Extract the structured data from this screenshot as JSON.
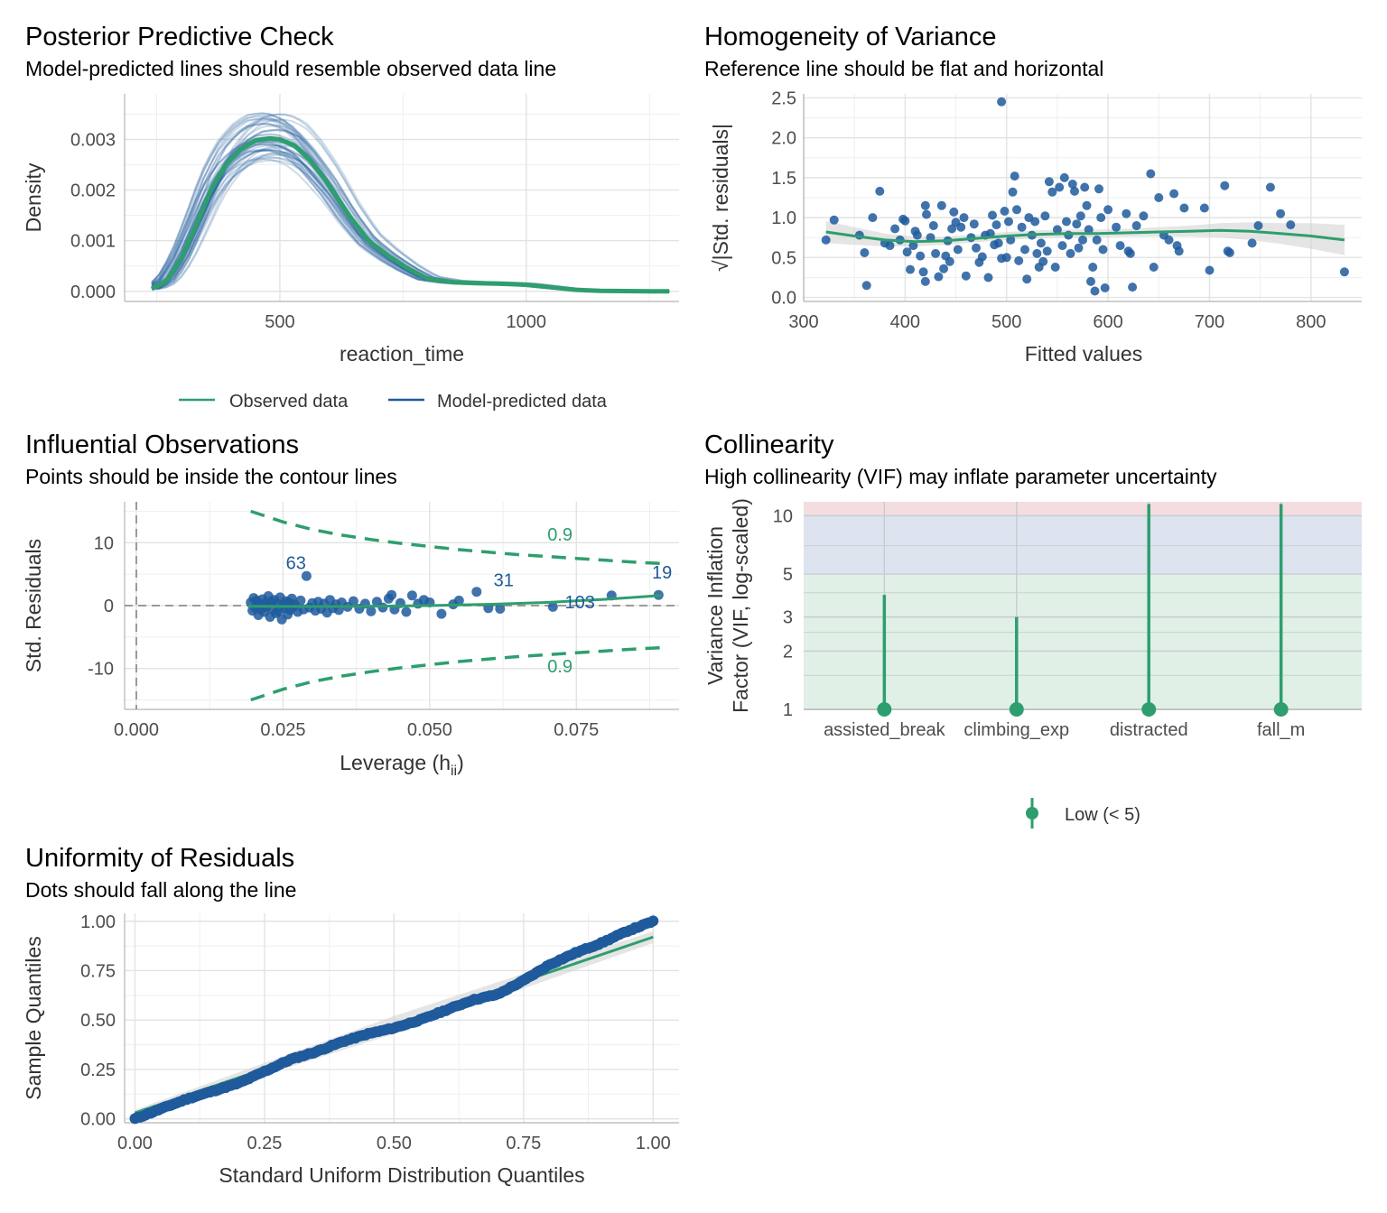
{
  "colors": {
    "observed": "#2e9e6e",
    "predicted": "#1f5a9c",
    "grid": "#e3e3e3",
    "axis": "#b3b3b3",
    "band": "#cfcfcf",
    "zone_low": "#e0f0e6",
    "zone_mod": "#dde3ef",
    "zone_high": "#f4dde0",
    "ref": "#9a9a9a"
  },
  "chart_data": [
    {
      "id": "ppc",
      "type": "line",
      "title": "Posterior Predictive Check",
      "subtitle": "Model-predicted lines should resemble observed data line",
      "xlabel": "reaction_time",
      "ylabel": "Density",
      "xlim": [
        185,
        1310
      ],
      "ylim": [
        -0.0002,
        0.0039
      ],
      "xticks": [
        500,
        1000
      ],
      "xtick_labels": [
        "500",
        "1000"
      ],
      "yticks": [
        0,
        0.001,
        0.002,
        0.003
      ],
      "ytick_labels": [
        "0.000",
        "0.001",
        "0.002",
        "0.003"
      ],
      "observed": {
        "x": [
          240,
          270,
          300,
          330,
          360,
          390,
          420,
          450,
          480,
          500,
          530,
          560,
          600,
          640,
          680,
          720,
          760,
          800,
          850,
          900,
          950,
          1000,
          1050,
          1100,
          1150,
          1200,
          1250,
          1290
        ],
        "y": [
          5e-05,
          0.0002,
          0.00065,
          0.0013,
          0.002,
          0.0025,
          0.0028,
          0.00298,
          0.00302,
          0.003,
          0.00288,
          0.0026,
          0.0021,
          0.0015,
          0.001,
          0.0007,
          0.00045,
          0.00025,
          0.00018,
          0.00016,
          0.00015,
          0.00013,
          8e-05,
          3e-05,
          1e-05,
          5e-06,
          2e-06,
          1e-06
        ]
      },
      "n_predicted_draws": 50,
      "legend": [
        {
          "label": "Observed data",
          "color_key": "observed"
        },
        {
          "label": "Model-predicted data",
          "color_key": "predicted"
        }
      ]
    },
    {
      "id": "hov",
      "type": "scatter",
      "title": "Homogeneity of Variance",
      "subtitle": "Reference line should be flat and horizontal",
      "xlabel": "Fitted values",
      "ylabel": "√|Std. residuals|",
      "xlim": [
        300,
        850
      ],
      "ylim": [
        -0.05,
        2.55
      ],
      "xticks": [
        300,
        400,
        500,
        600,
        700,
        800
      ],
      "xtick_labels": [
        "300",
        "400",
        "500",
        "600",
        "700",
        "800"
      ],
      "yticks": [
        0,
        0.5,
        1,
        1.5,
        2,
        2.5
      ],
      "ytick_labels": [
        "0.0",
        "0.5",
        "1.0",
        "1.5",
        "2.0",
        "2.5"
      ],
      "points": [
        [
          322,
          0.72
        ],
        [
          330,
          0.97
        ],
        [
          355,
          0.78
        ],
        [
          360,
          0.56
        ],
        [
          362,
          0.15
        ],
        [
          368,
          1.0
        ],
        [
          375,
          1.33
        ],
        [
          380,
          0.68
        ],
        [
          385,
          0.65
        ],
        [
          390,
          0.86
        ],
        [
          395,
          0.72
        ],
        [
          398,
          0.98
        ],
        [
          400,
          0.96
        ],
        [
          402,
          0.57
        ],
        [
          405,
          0.35
        ],
        [
          408,
          0.65
        ],
        [
          410,
          0.83
        ],
        [
          412,
          0.78
        ],
        [
          415,
          0.52
        ],
        [
          418,
          0.32
        ],
        [
          420,
          1.15
        ],
        [
          420,
          0.2
        ],
        [
          421,
          1.04
        ],
        [
          425,
          0.75
        ],
        [
          428,
          0.9
        ],
        [
          430,
          0.55
        ],
        [
          433,
          0.26
        ],
        [
          436,
          1.15
        ],
        [
          438,
          0.36
        ],
        [
          440,
          0.52
        ],
        [
          442,
          0.71
        ],
        [
          444,
          0.45
        ],
        [
          446,
          0.86
        ],
        [
          448,
          1.07
        ],
        [
          450,
          0.94
        ],
        [
          452,
          0.6
        ],
        [
          455,
          0.88
        ],
        [
          458,
          1.0
        ],
        [
          460,
          0.27
        ],
        [
          465,
          0.75
        ],
        [
          468,
          0.92
        ],
        [
          470,
          0.62
        ],
        [
          473,
          0.44
        ],
        [
          476,
          0.51
        ],
        [
          479,
          0.78
        ],
        [
          482,
          0.25
        ],
        [
          484,
          0.8
        ],
        [
          486,
          1.03
        ],
        [
          488,
          0.66
        ],
        [
          490,
          0.91
        ],
        [
          492,
          0.68
        ],
        [
          495,
          0.49
        ],
        [
          498,
          1.08
        ],
        [
          500,
          0.5
        ],
        [
          502,
          0.95
        ],
        [
          504,
          0.72
        ],
        [
          506,
          1.32
        ],
        [
          508,
          1.52
        ],
        [
          510,
          1.1
        ],
        [
          512,
          0.46
        ],
        [
          515,
          0.88
        ],
        [
          518,
          0.6
        ],
        [
          520,
          0.23
        ],
        [
          522,
          1.0
        ],
        [
          525,
          0.78
        ],
        [
          528,
          0.95
        ],
        [
          530,
          0.55
        ],
        [
          532,
          0.38
        ],
        [
          534,
          0.68
        ],
        [
          536,
          0.45
        ],
        [
          538,
          1.02
        ],
        [
          540,
          0.58
        ],
        [
          542,
          1.45
        ],
        [
          545,
          1.32
        ],
        [
          548,
          0.38
        ],
        [
          550,
          0.85
        ],
        [
          552,
          1.38
        ],
        [
          555,
          0.65
        ],
        [
          557,
          1.5
        ],
        [
          559,
          0.95
        ],
        [
          561,
          0.78
        ],
        [
          563,
          0.55
        ],
        [
          565,
          1.42
        ],
        [
          567,
          1.33
        ],
        [
          569,
          0.92
        ],
        [
          571,
          0.62
        ],
        [
          573,
          1.02
        ],
        [
          575,
          0.72
        ],
        [
          577,
          1.38
        ],
        [
          579,
          1.15
        ],
        [
          581,
          0.85
        ],
        [
          583,
          0.2
        ],
        [
          585,
          0.38
        ],
        [
          587,
          0.08
        ],
        [
          589,
          0.72
        ],
        [
          591,
          1.36
        ],
        [
          593,
          1.0
        ],
        [
          595,
          0.6
        ],
        [
          597,
          0.12
        ],
        [
          600,
          1.1
        ],
        [
          608,
          0.88
        ],
        [
          612,
          0.65
        ],
        [
          618,
          1.05
        ],
        [
          620,
          0.58
        ],
        [
          622,
          0.55
        ],
        [
          624,
          0.13
        ],
        [
          628,
          0.9
        ],
        [
          635,
          1.02
        ],
        [
          642,
          1.55
        ],
        [
          645,
          0.38
        ],
        [
          650,
          1.25
        ],
        [
          655,
          0.78
        ],
        [
          660,
          0.72
        ],
        [
          665,
          1.3
        ],
        [
          668,
          0.65
        ],
        [
          670,
          0.58
        ],
        [
          675,
          1.12
        ],
        [
          695,
          1.12
        ],
        [
          700,
          0.34
        ],
        [
          715,
          1.4
        ],
        [
          718,
          0.58
        ],
        [
          720,
          0.56
        ],
        [
          742,
          0.68
        ],
        [
          748,
          0.9
        ],
        [
          760,
          1.38
        ],
        [
          770,
          1.05
        ],
        [
          780,
          0.91
        ],
        [
          833,
          0.32
        ],
        [
          495,
          2.45
        ]
      ],
      "smooth_x": [
        322,
        350,
        380,
        410,
        440,
        470,
        500,
        530,
        560,
        590,
        620,
        650,
        680,
        710,
        740,
        770,
        800,
        833
      ],
      "smooth_y": [
        0.82,
        0.77,
        0.72,
        0.7,
        0.71,
        0.74,
        0.77,
        0.79,
        0.8,
        0.8,
        0.81,
        0.82,
        0.83,
        0.84,
        0.83,
        0.8,
        0.77,
        0.72
      ],
      "band_half": [
        0.14,
        0.11,
        0.08,
        0.06,
        0.05,
        0.05,
        0.05,
        0.05,
        0.05,
        0.05,
        0.05,
        0.06,
        0.07,
        0.09,
        0.11,
        0.13,
        0.16,
        0.19
      ]
    },
    {
      "id": "influential",
      "type": "scatter",
      "title": "Influential Observations",
      "subtitle": "Points should be inside the contour lines",
      "xlabel": "Leverage (h",
      "xlabel_sub": "ii",
      "xlabel_close": ")",
      "ylabel": "Std. Residuals",
      "xlim": [
        -0.002,
        0.0925
      ],
      "ylim": [
        -16.5,
        16.5
      ],
      "xticks": [
        0,
        0.025,
        0.05,
        0.075
      ],
      "xtick_labels": [
        "0.000",
        "0.025",
        "0.050",
        "0.075"
      ],
      "yticks": [
        -10,
        0,
        10
      ],
      "ytick_labels": [
        "-10",
        "0",
        "10"
      ],
      "contour_label": "0.9",
      "contour_x": [
        0.0195,
        0.025,
        0.03,
        0.035,
        0.04,
        0.045,
        0.05,
        0.055,
        0.06,
        0.065,
        0.07,
        0.075,
        0.08,
        0.085,
        0.0895
      ],
      "contour_y": [
        15.0,
        13.3,
        12.1,
        11.2,
        10.5,
        9.9,
        9.4,
        8.9,
        8.5,
        8.1,
        7.8,
        7.5,
        7.2,
        6.9,
        6.7
      ],
      "smooth_x": [
        0.019,
        0.03,
        0.04,
        0.05,
        0.06,
        0.07,
        0.08,
        0.0895
      ],
      "smooth_y": [
        -0.1,
        -0.15,
        -0.1,
        0.0,
        0.2,
        0.5,
        1.0,
        1.6
      ],
      "points": [
        [
          0.0195,
          0.5
        ],
        [
          0.0198,
          -0.8
        ],
        [
          0.02,
          1.2
        ],
        [
          0.0202,
          -0.3
        ],
        [
          0.0205,
          0.8
        ],
        [
          0.0208,
          -1.5
        ],
        [
          0.021,
          0.2
        ],
        [
          0.0212,
          -0.6
        ],
        [
          0.0215,
          1.0
        ],
        [
          0.0218,
          -1.0
        ],
        [
          0.022,
          0.4
        ],
        [
          0.0222,
          -0.2
        ],
        [
          0.0225,
          1.5
        ],
        [
          0.0228,
          -1.8
        ],
        [
          0.023,
          0.6
        ],
        [
          0.0232,
          -0.5
        ],
        [
          0.0235,
          0.9
        ],
        [
          0.0238,
          -1.2
        ],
        [
          0.024,
          0.3
        ],
        [
          0.0242,
          -0.9
        ],
        [
          0.0245,
          1.3
        ],
        [
          0.0248,
          -2.2
        ],
        [
          0.025,
          0.1
        ],
        [
          0.0252,
          -0.4
        ],
        [
          0.0255,
          0.7
        ],
        [
          0.0258,
          -1.4
        ],
        [
          0.026,
          0.5
        ],
        [
          0.0262,
          -0.7
        ],
        [
          0.0265,
          1.1
        ],
        [
          0.0268,
          -0.2
        ],
        [
          0.027,
          0.2
        ],
        [
          0.0275,
          -1.0
        ],
        [
          0.028,
          0.8
        ],
        [
          0.0285,
          -0.6
        ],
        [
          0.029,
          4.7
        ],
        [
          0.0295,
          -0.3
        ],
        [
          0.03,
          0.4
        ],
        [
          0.0305,
          -0.8
        ],
        [
          0.031,
          0.6
        ],
        [
          0.0315,
          -0.5
        ],
        [
          0.032,
          0.3
        ],
        [
          0.0325,
          -1.1
        ],
        [
          0.033,
          0.9
        ],
        [
          0.0335,
          -0.4
        ],
        [
          0.034,
          0.2
        ],
        [
          0.0345,
          -0.7
        ],
        [
          0.035,
          0.5
        ],
        [
          0.036,
          -0.2
        ],
        [
          0.037,
          0.7
        ],
        [
          0.038,
          -0.5
        ],
        [
          0.039,
          0.3
        ],
        [
          0.04,
          -0.9
        ],
        [
          0.041,
          0.6
        ],
        [
          0.042,
          -0.3
        ],
        [
          0.043,
          1.1
        ],
        [
          0.0435,
          1.7
        ],
        [
          0.044,
          -0.6
        ],
        [
          0.045,
          0.4
        ],
        [
          0.046,
          -1.0
        ],
        [
          0.047,
          1.6
        ],
        [
          0.048,
          0.3
        ],
        [
          0.049,
          0.9
        ],
        [
          0.05,
          0.5
        ],
        [
          0.052,
          -1.3
        ],
        [
          0.054,
          0.2
        ],
        [
          0.055,
          0.8
        ],
        [
          0.058,
          2.2
        ],
        [
          0.06,
          -0.4
        ],
        [
          0.062,
          -0.5
        ],
        [
          0.071,
          -0.2
        ],
        [
          0.081,
          1.6
        ],
        [
          0.089,
          1.7
        ]
      ],
      "labels": [
        {
          "text": "63",
          "x": 0.0272,
          "y": 5.8
        },
        {
          "text": "31",
          "x": 0.0626,
          "y": 3.1
        },
        {
          "text": "19",
          "x": 0.0896,
          "y": 4.3
        },
        {
          "text": "103",
          "x": 0.0756,
          "y": -0.4
        }
      ]
    },
    {
      "id": "collinearity",
      "type": "bar",
      "title": "Collinearity",
      "subtitle": "High collinearity (VIF) may inflate parameter uncertainty",
      "ylabel_line1": "Variance Inflation",
      "ylabel_line2": "Factor (VIF, log-scaled)",
      "categories": [
        "assisted_break",
        "climbing_exp",
        "distracted",
        "fall_m"
      ],
      "vif": [
        1.0,
        1.0,
        1.0,
        1.0
      ],
      "ci_low": [
        1.0,
        1.0,
        1.0,
        1.0
      ],
      "ci_high": [
        3.9,
        3.0,
        11.5,
        11.5
      ],
      "ylim": [
        1,
        11.8
      ],
      "yticks": [
        1,
        2,
        3,
        5,
        10
      ],
      "ytick_labels": [
        "1",
        "2",
        "3",
        "5",
        "10"
      ],
      "legend": [
        {
          "label": "Low (< 5)",
          "color_key": "observed"
        }
      ]
    },
    {
      "id": "qq",
      "type": "scatter",
      "title": "Uniformity of Residuals",
      "subtitle": "Dots should fall along the line",
      "xlabel": "Standard Uniform Distribution Quantiles",
      "ylabel": "Sample Quantiles",
      "xlim": [
        -0.02,
        1.05
      ],
      "ylim": [
        -0.02,
        1.04
      ],
      "xticks": [
        0,
        0.25,
        0.5,
        0.75,
        1
      ],
      "xtick_labels": [
        "0.00",
        "0.25",
        "0.50",
        "0.75",
        "1.00"
      ],
      "yticks": [
        0,
        0.25,
        0.5,
        0.75,
        1
      ],
      "ytick_labels": [
        "0.00",
        "0.25",
        "0.50",
        "0.75",
        "1.00"
      ],
      "ref_line": [
        [
          0,
          0.03
        ],
        [
          1,
          0.92
        ]
      ],
      "curve_x": [
        0,
        0.05,
        0.1,
        0.15,
        0.2,
        0.25,
        0.3,
        0.35,
        0.4,
        0.45,
        0.5,
        0.55,
        0.6,
        0.65,
        0.7,
        0.75,
        0.8,
        0.85,
        0.9,
        0.95,
        1.0
      ],
      "curve_y": [
        0.0,
        0.05,
        0.1,
        0.14,
        0.18,
        0.24,
        0.3,
        0.34,
        0.39,
        0.43,
        0.46,
        0.5,
        0.55,
        0.6,
        0.63,
        0.7,
        0.78,
        0.84,
        0.89,
        0.95,
        1.0
      ]
    }
  ]
}
